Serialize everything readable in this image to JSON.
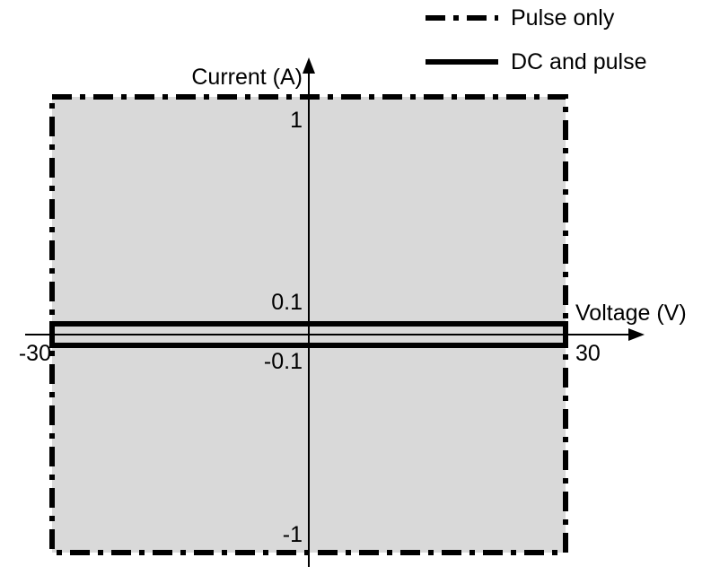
{
  "legend": {
    "pulse_only": "Pulse only",
    "dc_and_pulse": "DC and pulse"
  },
  "axes": {
    "x_label": "Voltage (V)",
    "y_label": "Current (A)"
  },
  "ticks": {
    "x_min": "-30",
    "x_max": "30",
    "y_max": "1",
    "y_min": "-1",
    "y_small_max": "0.1",
    "y_small_min": "-0.1"
  },
  "regions": {
    "pulse_only": {
      "voltage": [
        -30,
        30
      ],
      "current": [
        -1,
        1
      ],
      "style": "dash-dot",
      "fill": "#d9d9d9"
    },
    "dc_and_pulse": {
      "voltage": [
        -30,
        30
      ],
      "current": [
        -0.1,
        0.1
      ],
      "style": "solid"
    }
  }
}
